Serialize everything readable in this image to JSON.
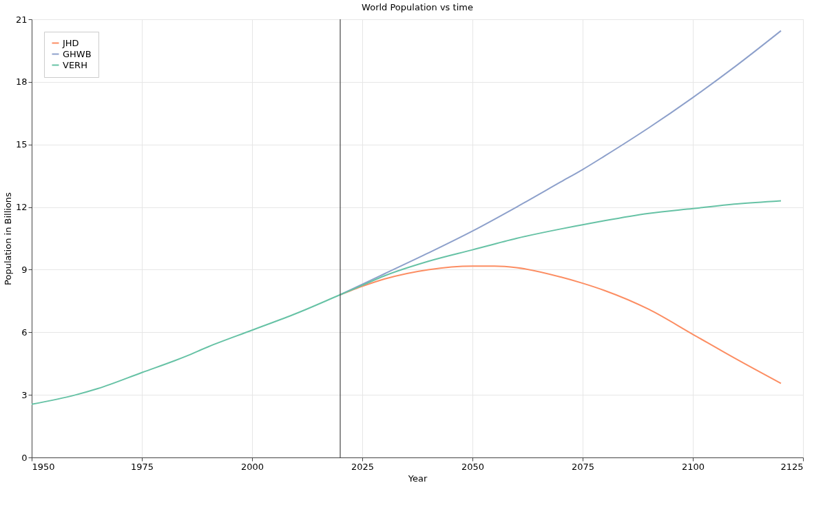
{
  "chart_data": {
    "type": "line",
    "title": "World Population vs time",
    "xlabel": "Year",
    "ylabel": "Population in Billions",
    "series": [
      {
        "name": "JHD",
        "color": "#fc8d62",
        "x": [
          2020,
          2025,
          2030,
          2040,
          2050,
          2055,
          2060,
          2070,
          2075,
          2080,
          2090,
          2100,
          2110,
          2120
        ],
        "values": [
          7.8,
          8.2,
          8.55,
          9.0,
          9.17,
          9.17,
          9.1,
          8.65,
          8.35,
          8.0,
          7.1,
          5.9,
          4.7,
          3.55
        ]
      },
      {
        "name": "GHWB",
        "color": "#8da0cb",
        "x": [
          2020,
          2025,
          2030,
          2040,
          2050,
          2060,
          2070,
          2075,
          2080,
          2090,
          2100,
          2110,
          2120
        ],
        "values": [
          7.8,
          8.3,
          8.8,
          9.8,
          10.85,
          12.0,
          13.2,
          13.8,
          14.45,
          15.8,
          17.25,
          18.8,
          20.45
        ]
      },
      {
        "name": "VERH",
        "color": "#66c2a5",
        "x": [
          1950,
          1960,
          1965,
          1975,
          1985,
          1990,
          2000,
          2010,
          2020,
          2025,
          2030,
          2040,
          2050,
          2060,
          2070,
          2075,
          2080,
          2090,
          2100,
          2110,
          2120
        ],
        "values": [
          2.55,
          3.0,
          3.3,
          4.07,
          4.85,
          5.3,
          6.1,
          6.9,
          7.8,
          8.25,
          8.7,
          9.4,
          9.95,
          10.5,
          10.95,
          11.15,
          11.35,
          11.7,
          11.93,
          12.15,
          12.3
        ]
      }
    ],
    "xlim": [
      1950,
      2125
    ],
    "xticks": [
      1950,
      1975,
      2000,
      2025,
      2050,
      2075,
      2100,
      2125
    ],
    "ylim": [
      0,
      21
    ],
    "yticks": [
      0,
      3,
      6,
      9,
      12,
      15,
      18,
      21
    ],
    "ref_lines": [
      {
        "axis": "x",
        "value": 2020,
        "color": "#444444"
      }
    ],
    "grid": true,
    "legend": "top left",
    "marker": "none",
    "line_style": "solid"
  }
}
